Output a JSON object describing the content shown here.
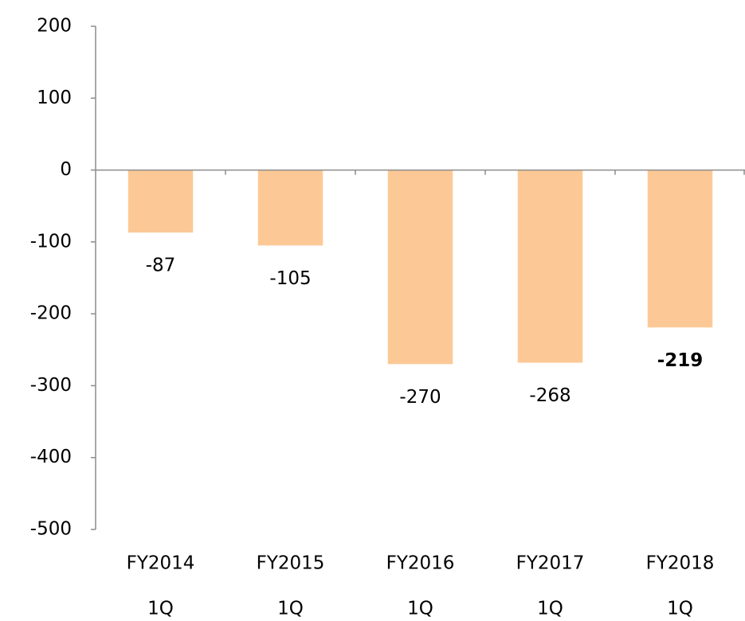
{
  "chart_data": {
    "type": "bar",
    "categories": [
      [
        "FY2014",
        "1Q"
      ],
      [
        "FY2015",
        "1Q"
      ],
      [
        "FY2016",
        "1Q"
      ],
      [
        "FY2017",
        "1Q"
      ],
      [
        "FY2018",
        "1Q"
      ]
    ],
    "values": [
      -87,
      -105,
      -270,
      -268,
      -219
    ],
    "color": "#fcc996",
    "label_color": "#ff0000",
    "negative_tick_color": "#ff0000",
    "highlight_index": 4,
    "ylim": [
      -500,
      200
    ],
    "yticks": [
      -500,
      -400,
      -300,
      -200,
      -100,
      0,
      100,
      200
    ],
    "grid": false
  }
}
